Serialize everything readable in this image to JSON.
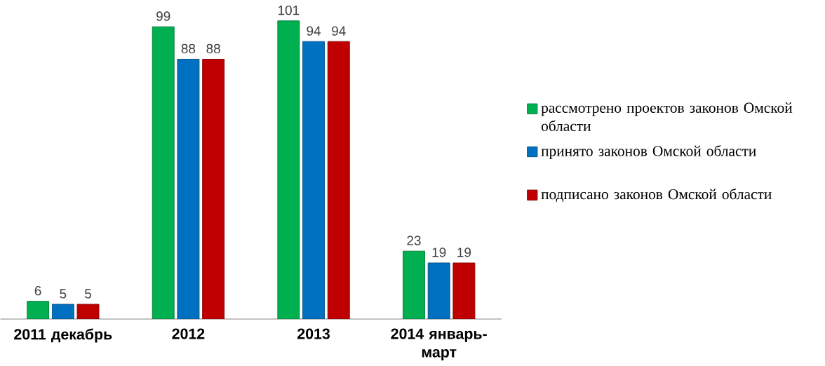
{
  "chart_data": {
    "type": "bar",
    "categories": [
      "2011 декабрь",
      "2012",
      "2013",
      "2014 январь-март"
    ],
    "series": [
      {
        "name": "рассмотрено проектов законов Омской области",
        "color": "#00b050",
        "values": [
          6,
          99,
          101,
          23
        ]
      },
      {
        "name": "принято законов Омской области",
        "color": "#0070c0",
        "values": [
          5,
          88,
          94,
          19
        ]
      },
      {
        "name": "подписано законов Омской области",
        "color": "#c00000",
        "values": [
          5,
          88,
          94,
          19
        ]
      }
    ],
    "data_labels": true,
    "legend": "right"
  }
}
